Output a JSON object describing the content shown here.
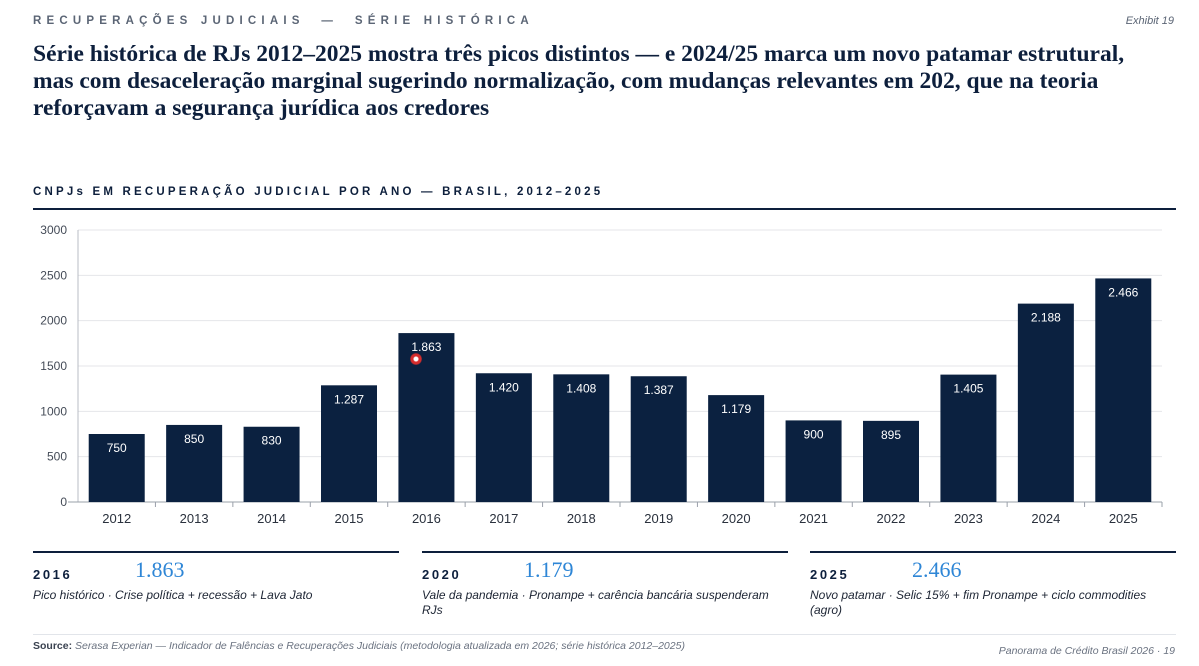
{
  "header": {
    "eyebrow": "RECUPERAÇÕES JUDICIAIS  —  SÉRIE HISTÓRICA",
    "exhibit": "Exhibit 19",
    "headline": "Série histórica de RJs 2012–2025 mostra três picos distintos — e 2024/25 marca um novo patamar estrutural, mas com desaceleração marginal sugerindo normalização, com mudanças relevantes em 202, que na teoria reforçavam a segurança jurídica aos credores"
  },
  "chart_title": "CNPJs EM RECUPERAÇÃO JUDICIAL POR ANO — BRASIL, 2012–2025",
  "chart_data": {
    "type": "bar",
    "categories": [
      "2012",
      "2013",
      "2014",
      "2015",
      "2016",
      "2017",
      "2018",
      "2019",
      "2020",
      "2021",
      "2022",
      "2023",
      "2024",
      "2025"
    ],
    "values": [
      750,
      850,
      830,
      1287,
      1863,
      1420,
      1408,
      1387,
      1179,
      900,
      895,
      1405,
      2188,
      2466
    ],
    "labels": [
      "750",
      "850",
      "830",
      "1.287",
      "1.863",
      "1.420",
      "1.408",
      "1.387",
      "1.179",
      "900",
      "895",
      "1.405",
      "2.188",
      "2.466"
    ],
    "y_ticks": [
      "0",
      "500",
      "1000",
      "1500",
      "2000",
      "2500",
      "3000"
    ],
    "ylim": [
      0,
      3000
    ],
    "grid": true,
    "bar_color": "#0b2140"
  },
  "kpis": [
    {
      "year": "2016",
      "value": "1.863",
      "desc": "Pico histórico  ·  Crise política + recessão + Lava Jato"
    },
    {
      "year": "2020",
      "value": "1.179",
      "desc": "Vale da pandemia  ·  Pronampe + carência bancária suspenderam RJs"
    },
    {
      "year": "2025",
      "value": "2.466",
      "desc": "Novo patamar  ·  Selic 15% + fim Pronampe + ciclo commodities (agro)"
    }
  ],
  "footer": {
    "source_label": "Source:",
    "source_text": " Serasa Experian — Indicador de Falências e Recuperações Judiciais (metodologia atualizada em 2026; série histórica 2012–2025)",
    "page": "Panorama de Crédito Brasil 2026  ·  19"
  }
}
